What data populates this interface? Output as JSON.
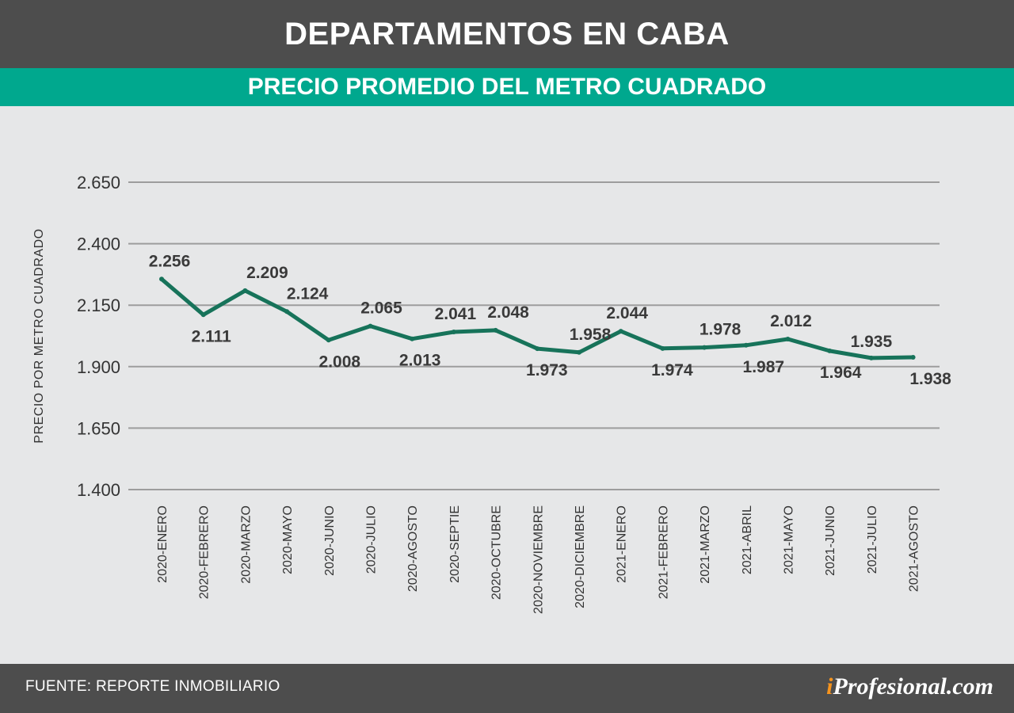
{
  "header": {
    "title": "DEPARTAMENTOS EN CABA",
    "subtitle": "PRECIO PROMEDIO DEL METRO CUADRADO"
  },
  "footer": {
    "source": "FUENTE: REPORTE INMOBILIARIO",
    "brand_i": "i",
    "brand_rest": "Profesional.com"
  },
  "colors": {
    "header_bg": "#4d4d4d",
    "subheader_bg": "#00a88e",
    "chart_bg": "#e6e7e8",
    "line": "#17735a",
    "gridline": "#9d9d9d",
    "brand_accent": "#f7941d"
  },
  "chart_data": {
    "type": "line",
    "title": "",
    "xlabel": "",
    "ylabel": "PRECIO POR METRO CUADRADO",
    "ylim": [
      1400,
      2650
    ],
    "yticks": [
      2650,
      2400,
      2150,
      1900,
      1650,
      1400
    ],
    "ytick_labels": [
      "2.650",
      "2.400",
      "2.150",
      "1.900",
      "1.650",
      "1.400"
    ],
    "grid": true,
    "categories": [
      "2020-ENERO",
      "2020-FEBRERO",
      "2020-MARZO",
      "2020-MAYO",
      "2020-JUNIO",
      "2020-JULIO",
      "2020-AGOSTO",
      "2020-SEPTIE",
      "2020-OCTUBRE",
      "2020-NOVIEMBRE",
      "2020-DICIEMBRE",
      "2021-ENERO",
      "2021-FEBRERO",
      "2021-MARZO",
      "2021-ABRIL",
      "2021-MAYO",
      "2021-JUNIO",
      "2021-JULIO",
      "2021-AGOSTO"
    ],
    "values": [
      2256,
      2111,
      2209,
      2124,
      2008,
      2065,
      2013,
      2041,
      2048,
      1973,
      1958,
      2044,
      1974,
      1978,
      1987,
      2012,
      1964,
      1935,
      1938
    ],
    "value_labels": [
      "2.256",
      "2.111",
      "2.209",
      "2.124",
      "2.008",
      "2.065",
      "2.013",
      "2.041",
      "2.048",
      "1.973",
      "1.958",
      "2.044",
      "1.974",
      "1.978",
      "1.987",
      "2.012",
      "1.964",
      "1.935",
      "1.938"
    ]
  }
}
